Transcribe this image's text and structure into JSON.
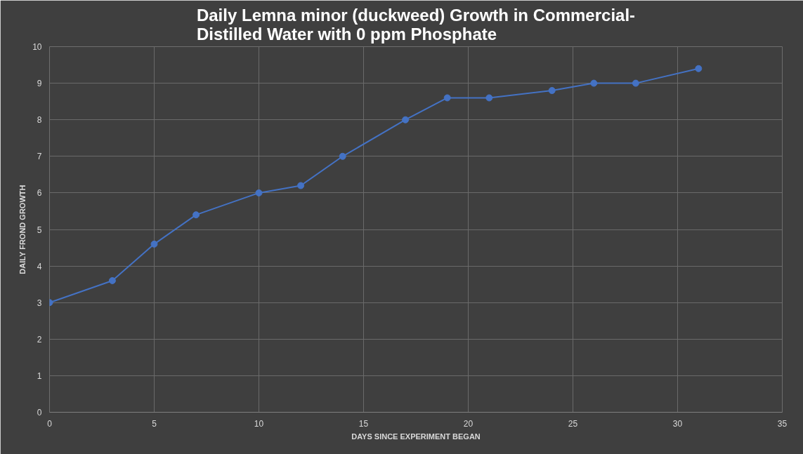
{
  "chart_data": {
    "type": "line",
    "title": "Daily Lemna minor (duckweed) Growth in Commercial-\nDistilled Water with 0 ppm Phosphate",
    "xlabel": "DAYS SINCE EXPERIMENT BEGAN",
    "ylabel": "DAILY FROND GROWTH",
    "x": [
      0,
      3,
      5,
      7,
      10,
      12,
      14,
      17,
      19,
      21,
      24,
      26,
      28,
      31
    ],
    "series": [
      {
        "color": "#4472c4",
        "values": [
          3.0,
          3.6,
          4.6,
          5.4,
          6.0,
          6.2,
          7.0,
          8.0,
          8.6,
          8.6,
          8.8,
          9.0,
          9.0,
          9.4
        ]
      }
    ],
    "xlim": [
      0,
      35
    ],
    "xticks": [
      0,
      5,
      10,
      15,
      20,
      25,
      30,
      35
    ],
    "ylim": [
      0,
      10
    ],
    "yticks": [
      0,
      1,
      2,
      3,
      4,
      5,
      6,
      7,
      8,
      9,
      10
    ],
    "grid": true,
    "marker": "circle",
    "line_style": "solid"
  }
}
